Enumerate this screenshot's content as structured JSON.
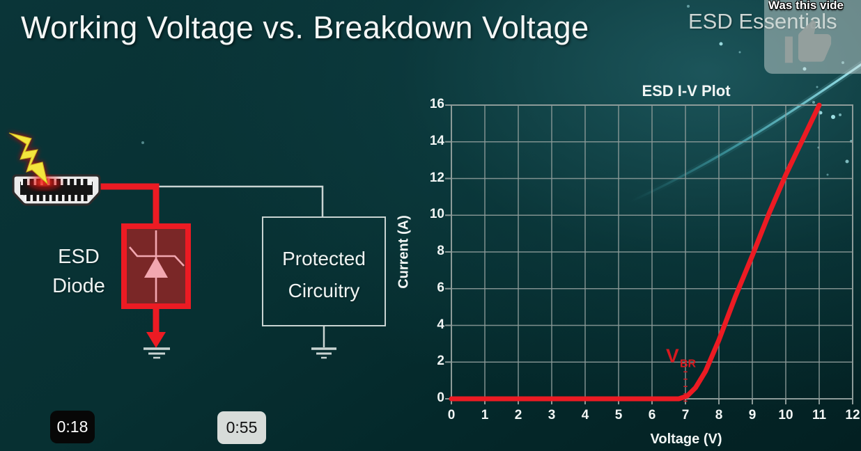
{
  "slide": {
    "title": "Working Voltage vs. Breakdown Voltage",
    "brand": "ESD Essentials"
  },
  "video_overlay": {
    "question_text": "Was this vide",
    "thumb_icon": "thumbs-up-icon"
  },
  "timestamps": {
    "current": "0:18",
    "chapter": "0:55"
  },
  "diagram": {
    "esd_diode_label": {
      "line1": "ESD",
      "line2": "Diode"
    },
    "protected_label": {
      "line1": "Protected",
      "line2": "Circuitry"
    },
    "colors": {
      "wire_red": "#ec1b23",
      "wire_gray": "#c9d4d2",
      "diode_fill": "#7a2727",
      "diode_symbol": "#f2a7b0",
      "bolt_yellow": "#f3e63c",
      "connector_body": "#ececec"
    }
  },
  "chart_data": {
    "type": "line",
    "title": "ESD I-V Plot",
    "xlabel": "Voltage (V)",
    "ylabel": "Current (A)",
    "xlim": [
      0,
      12
    ],
    "ylim": [
      0,
      16
    ],
    "x_ticks": [
      0,
      1,
      2,
      3,
      4,
      5,
      6,
      7,
      8,
      9,
      10,
      11,
      12
    ],
    "y_ticks": [
      0,
      2,
      4,
      6,
      8,
      10,
      12,
      14,
      16
    ],
    "grid": true,
    "grid_color": "#8d9b99",
    "series": [
      {
        "name": "ESD diode I-V curve",
        "color": "#ec1b23",
        "points": [
          [
            0,
            0
          ],
          [
            6.8,
            0
          ],
          [
            7.05,
            0.15
          ],
          [
            7.3,
            0.6
          ],
          [
            7.6,
            1.5
          ],
          [
            8,
            3.2
          ],
          [
            8.5,
            5.6
          ],
          [
            9,
            7.8
          ],
          [
            9.5,
            10.1
          ],
          [
            10,
            12.2
          ],
          [
            10.5,
            14.1
          ],
          [
            11,
            16
          ]
        ]
      }
    ],
    "annotation": {
      "text": "V",
      "subscript": "BR",
      "x": 7,
      "line_y_top": 1.5,
      "line_y_bottom": -0.45,
      "label_x": 6.5,
      "label_y": 2.9,
      "color": "#d6191f"
    }
  },
  "background": {
    "base_teal": "#073032",
    "swoosh_color": "#8fe4ec"
  }
}
